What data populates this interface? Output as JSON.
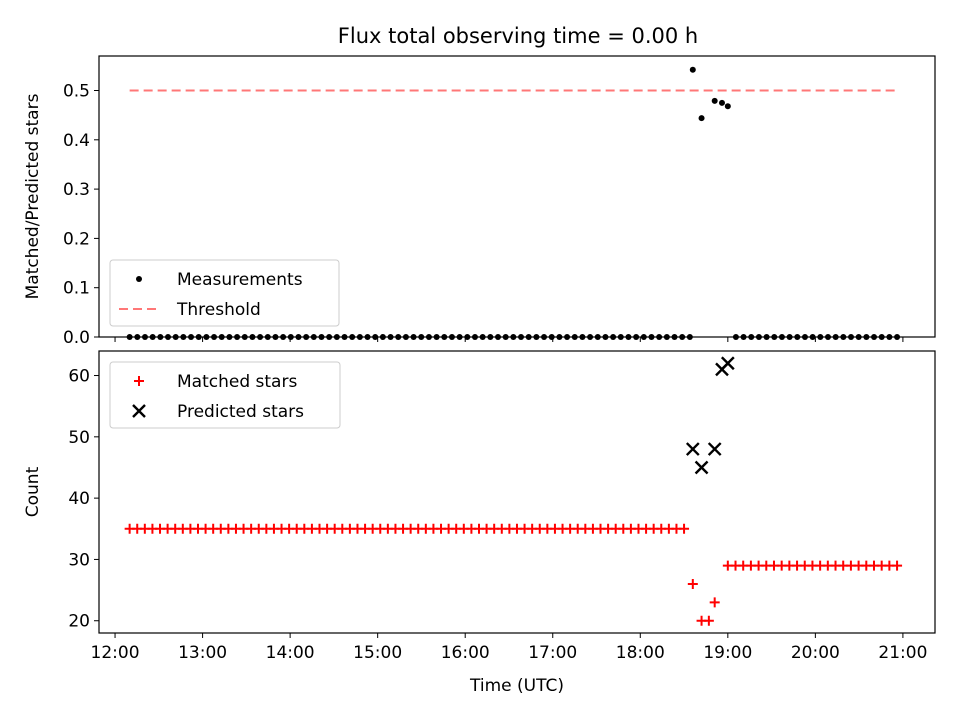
{
  "figure": {
    "title": "Flux total observing time = 0.00 h"
  },
  "chart_data": [
    {
      "type": "scatter",
      "xlabel": "",
      "ylabel": "Matched/Predicted stars",
      "ylim": [
        0,
        0.57
      ],
      "yticks": [
        "0.0",
        "0.1",
        "0.2",
        "0.3",
        "0.4",
        "0.5"
      ],
      "xlim": [
        "11:49",
        "21:22"
      ],
      "xticks": [
        "12:00",
        "13:00",
        "14:00",
        "15:00",
        "16:00",
        "17:00",
        "18:00",
        "19:00",
        "20:00",
        "21:00"
      ],
      "xticklabels_visible": false,
      "grid": false,
      "legend_position": "lower-left",
      "series": [
        {
          "name": "Measurements",
          "marker": "dot",
          "color": "#000000",
          "points": [
            [
              "18:36",
              0.542
            ],
            [
              "18:42",
              0.444
            ],
            [
              "18:51",
              0.479
            ],
            [
              "18:56",
              0.475
            ],
            [
              "19:00",
              0.468
            ]
          ],
          "zero_points_start": "12:10",
          "zero_points_end": "20:56",
          "zero_points_count": 101,
          "zero_points_gaps": [
            "18:36",
            "19:00"
          ]
        },
        {
          "name": "Threshold",
          "style": "dashed-line",
          "color": "#ff7777",
          "x": [
            "12:10",
            "20:56"
          ],
          "y": [
            0.5,
            0.5
          ]
        }
      ]
    },
    {
      "type": "scatter",
      "xlabel": "Time (UTC)",
      "ylabel": "Count",
      "ylim": [
        18,
        64
      ],
      "yticks": [
        "20",
        "30",
        "40",
        "50",
        "60"
      ],
      "xlim": [
        "11:49",
        "21:22"
      ],
      "xticks": [
        "12:00",
        "13:00",
        "14:00",
        "15:00",
        "16:00",
        "17:00",
        "18:00",
        "19:00",
        "20:00",
        "21:00"
      ],
      "grid": false,
      "legend_position": "upper-left",
      "series": [
        {
          "name": "Matched stars",
          "marker": "plus",
          "color": "#ff0000",
          "runs": [
            {
              "start": "12:10",
              "end": "18:30",
              "y": 35
            },
            {
              "start": "19:00",
              "end": "20:56",
              "y": 29
            }
          ],
          "points": [
            [
              "18:36",
              26
            ],
            [
              "18:42",
              20
            ],
            [
              "18:47",
              20
            ],
            [
              "18:51",
              23
            ]
          ]
        },
        {
          "name": "Predicted stars",
          "marker": "x",
          "color": "#000000",
          "points": [
            [
              "18:36",
              48
            ],
            [
              "18:42",
              45
            ],
            [
              "18:51",
              48
            ],
            [
              "18:56",
              61
            ],
            [
              "19:00",
              62
            ]
          ]
        }
      ]
    }
  ]
}
